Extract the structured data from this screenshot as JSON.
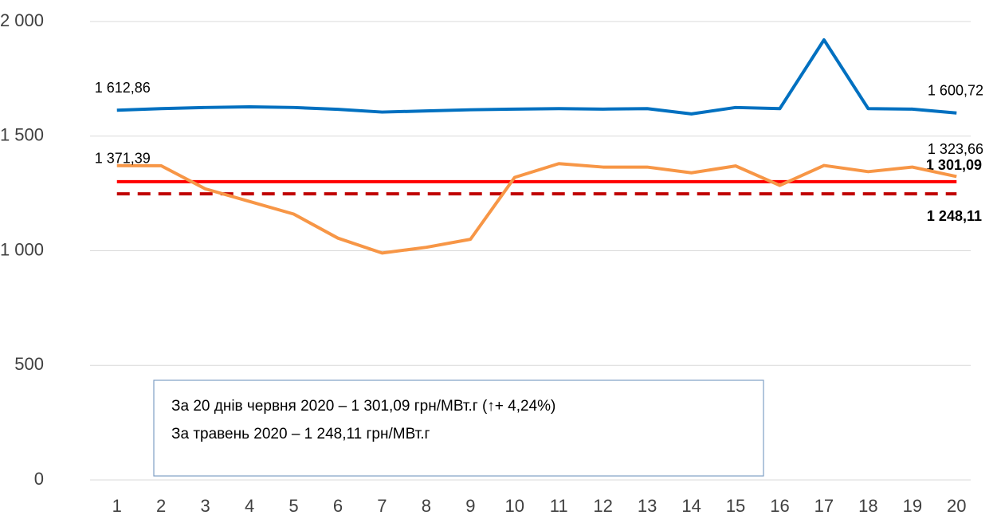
{
  "chart_data": {
    "type": "line",
    "categories": [
      "1",
      "2",
      "3",
      "4",
      "5",
      "6",
      "7",
      "8",
      "9",
      "10",
      "11",
      "12",
      "13",
      "14",
      "15",
      "16",
      "17",
      "18",
      "19",
      "20"
    ],
    "series": [
      {
        "color": "#0070c0",
        "values": [
          1612.86,
          1620,
          1625,
          1628,
          1625,
          1617,
          1605,
          1610,
          1615,
          1618,
          1620,
          1618,
          1620,
          1597,
          1625,
          1620,
          1920,
          1620,
          1618,
          1600.72
        ],
        "value_labels": [
          "1 612,86",
          null,
          null,
          null,
          null,
          null,
          null,
          null,
          null,
          null,
          null,
          null,
          null,
          null,
          null,
          null,
          null,
          null,
          null,
          "1 600,72"
        ]
      },
      {
        "color": "#f79646",
        "values": [
          1371.39,
          1371,
          1270,
          1215,
          1160,
          1055,
          990,
          1015,
          1050,
          1320,
          1380,
          1365,
          1365,
          1340,
          1370,
          1285,
          1372,
          1345,
          1365,
          1323.66
        ],
        "value_labels": [
          "1 371,39",
          null,
          null,
          null,
          null,
          null,
          null,
          null,
          null,
          null,
          null,
          null,
          null,
          null,
          null,
          null,
          null,
          null,
          null,
          "1 323,66"
        ]
      }
    ],
    "reference_lines": [
      {
        "value": 1301.09,
        "label": "1 301,09",
        "color": "#ff0000",
        "dashed": false
      },
      {
        "value": 1248.11,
        "label": "1 248,11",
        "color": "#c00000",
        "dashed": true
      }
    ],
    "ylim": [
      0,
      2000
    ],
    "yticks": [
      0,
      500,
      {
        "value": 1000,
        "label": "1 000"
      },
      {
        "value": 1500,
        "label": "1 500"
      },
      {
        "value": 2000,
        "label": "2 000"
      }
    ],
    "grid": true,
    "annotations": [
      "За 20 днів червня 2020 – 1 301,09 грн/МВт.г (↑+ 4,24%)",
      "За травень 2020 – 1 248,11 грн/МВт.г"
    ]
  }
}
